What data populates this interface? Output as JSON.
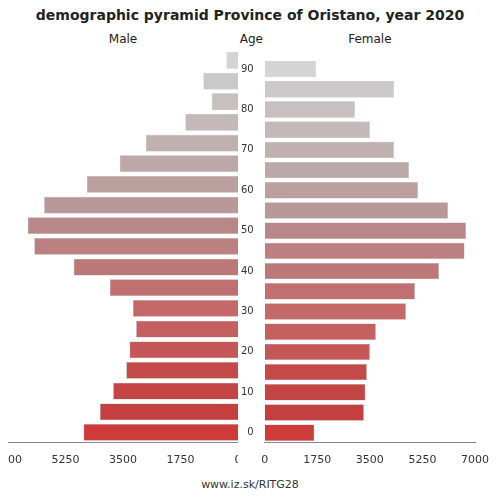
{
  "chart_data": {
    "type": "bar",
    "orientation": "horizontal",
    "title": "demographic pyramid Province of Oristano, year 2020",
    "ylabel": "Age",
    "annotations": [
      "www.iz.sk/RITG28"
    ],
    "categories": [
      "90",
      null,
      "80",
      null,
      "70",
      null,
      "60",
      null,
      "50",
      null,
      "40",
      null,
      "30",
      null,
      "20",
      null,
      "10",
      null,
      "0"
    ],
    "series": [
      {
        "name": "Male",
        "values": [
          350,
          1050,
          800,
          1600,
          2800,
          3600,
          4600,
          5900,
          6400,
          6200,
          5000,
          3900,
          3200,
          3100,
          3300,
          3400,
          3800,
          4200,
          4700
        ]
      },
      {
        "name": "Female",
        "values": [
          1700,
          4300,
          3000,
          3500,
          4300,
          4800,
          5100,
          6100,
          6700,
          6650,
          5800,
          5000,
          4700,
          3700,
          3500,
          3400,
          3350,
          3300,
          1650
        ]
      }
    ],
    "colors": [
      "#d4d4d4",
      "#cac8c8",
      "#c8c0c0",
      "#c4b8b8",
      "#c0b0b0",
      "#bca8a8",
      "#bca0a0",
      "#b89898",
      "#b88888",
      "#bc8080",
      "#bc7878",
      "#c07070",
      "#c46868",
      "#c46060",
      "#c45858",
      "#c44a4a",
      "#c44545",
      "#c44040",
      "#cd3b3b"
    ],
    "xlim": [
      0,
      7000
    ],
    "xticks": [
      0,
      1750,
      3500,
      5250,
      7000
    ],
    "grid": false
  }
}
